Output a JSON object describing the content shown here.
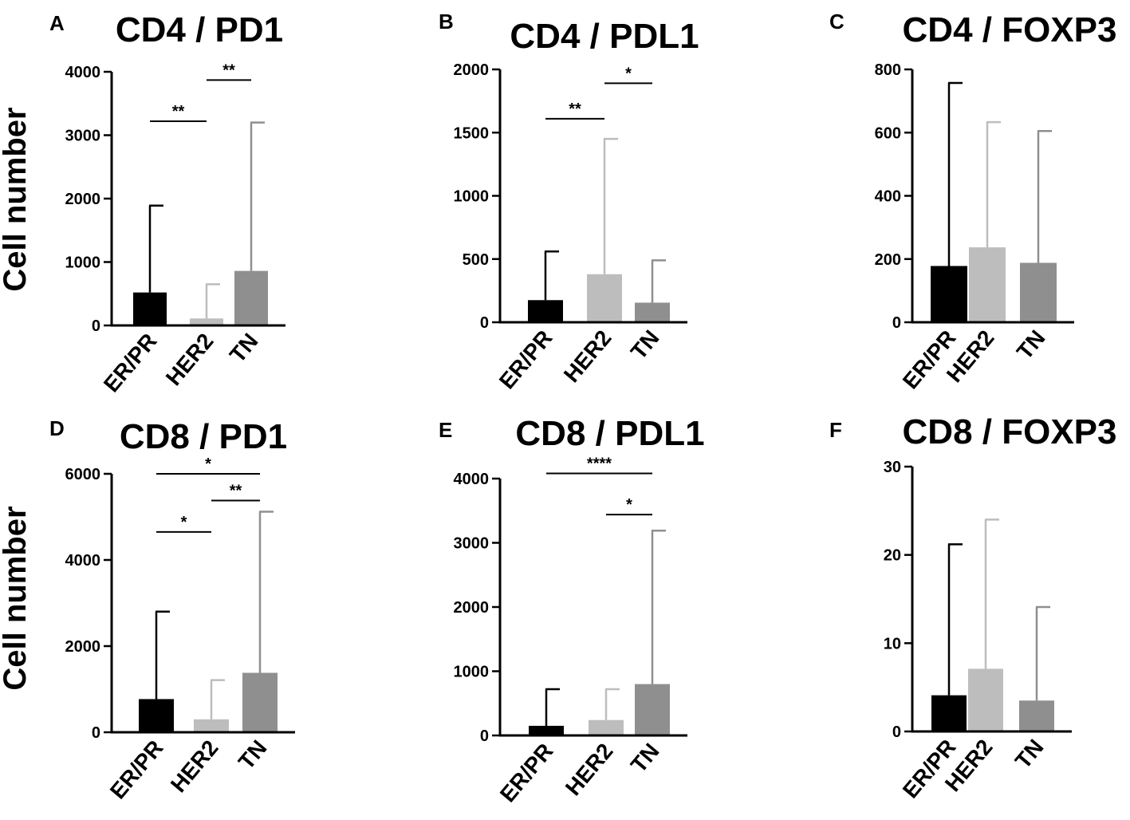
{
  "figure": {
    "y_axis_label": "Cell number",
    "colors": {
      "ER/PR": "#000000",
      "HER2": "#bdbdbd",
      "TN": "#8f8f8f"
    }
  },
  "chart_data": [
    {
      "type": "bar",
      "panel": "A",
      "title": "CD4 / PD1",
      "categories": [
        "ER/PR",
        "HER2",
        "TN"
      ],
      "values": [
        520,
        110,
        860
      ],
      "error_upper": [
        1890,
        650,
        3200
      ],
      "ylim": [
        0,
        4000
      ],
      "yticks": [
        0,
        1000,
        2000,
        3000,
        4000
      ],
      "ylabel": "Cell number",
      "significance": [
        {
          "from": 0,
          "to": 1,
          "label": "**",
          "y": 3220
        },
        {
          "from": 1,
          "to": 2,
          "label": "**",
          "y": 3870
        }
      ]
    },
    {
      "type": "bar",
      "panel": "B",
      "title": "CD4 / PDL1",
      "categories": [
        "ER/PR",
        "HER2",
        "TN"
      ],
      "values": [
        175,
        380,
        155
      ],
      "error_upper": [
        560,
        1450,
        490
      ],
      "ylim": [
        0,
        2000
      ],
      "yticks": [
        0,
        500,
        1000,
        1500,
        2000
      ],
      "ylabel": "",
      "significance": [
        {
          "from": 0,
          "to": 1,
          "label": "**",
          "y": 1610
        },
        {
          "from": 1,
          "to": 2,
          "label": "*",
          "y": 1890
        }
      ]
    },
    {
      "type": "bar",
      "panel": "C",
      "title": "CD4 / FOXP3",
      "categories": [
        "ER/PR",
        "HER2",
        "TN"
      ],
      "values": [
        178,
        237,
        188
      ],
      "error_upper": [
        757,
        633,
        605
      ],
      "ylim": [
        0,
        800
      ],
      "yticks": [
        0,
        200,
        400,
        600,
        800
      ],
      "ylabel": "",
      "significance": []
    },
    {
      "type": "bar",
      "panel": "D",
      "title": "CD8 / PD1",
      "categories": [
        "ER/PR",
        "HER2",
        "TN"
      ],
      "values": [
        770,
        300,
        1380
      ],
      "error_upper": [
        2800,
        1210,
        5120
      ],
      "ylim": [
        0,
        6000
      ],
      "yticks": [
        0,
        2000,
        4000,
        6000
      ],
      "ylabel": "Cell number",
      "significance": [
        {
          "from": 0,
          "to": 2,
          "label": "*",
          "y": 6000
        },
        {
          "from": 1,
          "to": 2,
          "label": "**",
          "y": 5380
        },
        {
          "from": 0,
          "to": 1,
          "label": "*",
          "y": 4650
        }
      ]
    },
    {
      "type": "bar",
      "panel": "E",
      "title": "CD8 / PDL1",
      "categories": [
        "ER/PR",
        "HER2",
        "TN"
      ],
      "values": [
        150,
        240,
        800
      ],
      "error_upper": [
        720,
        720,
        3190
      ],
      "ylim": [
        0,
        4000
      ],
      "yticks": [
        0,
        1000,
        2000,
        3000,
        4000
      ],
      "ylabel": "",
      "significance": [
        {
          "from": 0,
          "to": 2,
          "label": "****",
          "y": 4080
        },
        {
          "from": 1,
          "to": 2,
          "label": "*",
          "y": 3440
        }
      ]
    },
    {
      "type": "bar",
      "panel": "F",
      "title": "CD8 / FOXP3",
      "categories": [
        "ER/PR",
        "HER2",
        "TN"
      ],
      "values": [
        4.1,
        7.1,
        3.5
      ],
      "error_upper": [
        21.2,
        24.0,
        14.1
      ],
      "ylim": [
        0,
        30
      ],
      "yticks": [
        0,
        10,
        20,
        30
      ],
      "ylabel": "",
      "significance": []
    }
  ]
}
